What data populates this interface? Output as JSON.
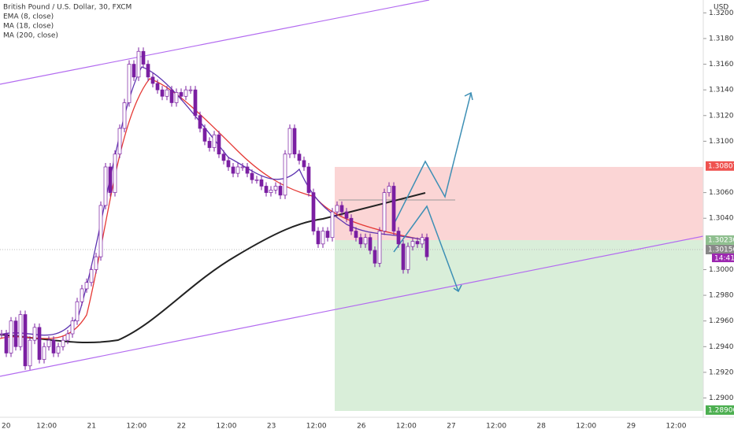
{
  "header": {
    "symbol": "British Pound / U.S. Dollar, 30, FXCM",
    "indicators": [
      "EMA (8, close)",
      "MA (18, close)",
      "MA (200, close)"
    ]
  },
  "price_axis": {
    "currency": "USD",
    "range": [
      1.2885,
      1.321
    ],
    "ticks": [
      {
        "value": 1.32,
        "label": "1.32000"
      },
      {
        "value": 1.318,
        "label": "1.31800"
      },
      {
        "value": 1.316,
        "label": "1.31600"
      },
      {
        "value": 1.314,
        "label": "1.31400"
      },
      {
        "value": 1.312,
        "label": "1.31200"
      },
      {
        "value": 1.31,
        "label": "1.31000"
      },
      {
        "value": 1.306,
        "label": "1.30600"
      },
      {
        "value": 1.304,
        "label": "1.30400"
      },
      {
        "value": 1.3,
        "label": "1.30000"
      },
      {
        "value": 1.298,
        "label": "1.29800"
      },
      {
        "value": 1.296,
        "label": "1.29600"
      },
      {
        "value": 1.294,
        "label": "1.29400"
      },
      {
        "value": 1.292,
        "label": "1.29200"
      },
      {
        "value": 1.29,
        "label": "1.29000"
      }
    ],
    "tags": [
      {
        "value": 1.30807,
        "label": "1.30807",
        "color": "#ef5350"
      },
      {
        "value": 1.3023,
        "label": "1.30230",
        "color": "#8fbf8f"
      },
      {
        "value": 1.30156,
        "label": "1.30156",
        "color": "#888888"
      },
      {
        "value": 1.28906,
        "label": "1.28906",
        "color": "#4caf50"
      }
    ],
    "countdown": "14:41"
  },
  "time_axis": {
    "labels": [
      "20",
      "12:00",
      "21",
      "12:00",
      "22",
      "12:00",
      "23",
      "12:00",
      "26",
      "12:00",
      "27",
      "12:00",
      "28",
      "12:00",
      "29",
      "12:00"
    ]
  },
  "prices": {
    "closes": [
      1.295,
      1.2935,
      1.296,
      1.294,
      1.2965,
      1.2925,
      1.2945,
      1.2955,
      1.293,
      1.294,
      1.2945,
      1.2935,
      1.294,
      1.2945,
      1.295,
      1.296,
      1.2975,
      1.2985,
      1.299,
      1.3,
      1.301,
      1.305,
      1.308,
      1.306,
      1.309,
      1.311,
      1.313,
      1.316,
      1.315,
      1.317,
      1.316,
      1.315,
      1.3145,
      1.314,
      1.3135,
      1.314,
      1.313,
      1.3138,
      1.3135,
      1.314,
      1.314,
      1.312,
      1.311,
      1.31,
      1.3095,
      1.3105,
      1.309,
      1.3085,
      1.308,
      1.3075,
      1.308,
      1.308,
      1.3075,
      1.307,
      1.307,
      1.3065,
      1.306,
      1.3062,
      1.3065,
      1.3058,
      1.309,
      1.311,
      1.309,
      1.3085,
      1.308,
      1.306,
      1.303,
      1.302,
      1.303,
      1.3025,
      1.3045,
      1.305,
      1.3045,
      1.304,
      1.303,
      1.3025,
      1.302,
      1.3025,
      1.3015,
      1.3005,
      1.303,
      1.306,
      1.3065,
      1.303,
      1.302,
      1.3,
      1.3018,
      1.3022,
      1.302,
      1.3025,
      1.301
    ]
  }
}
